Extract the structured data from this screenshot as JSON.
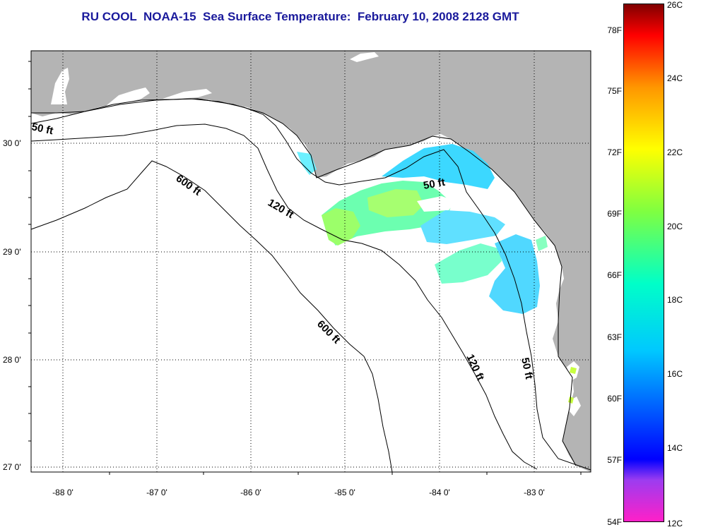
{
  "title": "RU COOL  NOAA-15  Sea Surface Temperature:  February 10, 2008 2128 GMT",
  "map": {
    "latitude_labels": [
      "30 0'",
      "29 0'",
      "28 0'",
      "27 0'"
    ],
    "longitude_labels": [
      "-88 0'",
      "-87 0'",
      "-86 0'",
      "-85 0'",
      "-84 0'",
      "-83 0'"
    ],
    "lon_range": [
      -88.3,
      -82.4
    ],
    "lat_range": [
      26.95,
      30.85
    ],
    "contour_labels": {
      "fifty_west": "50 ft",
      "fifty_east_north": "50 ft",
      "fifty_east_south": "50 ft",
      "onetwenty_north": "120 ft",
      "onetwenty_south": "120 ft",
      "sixhundred_north": "600 ft",
      "sixhundred_south": "600 ft"
    },
    "colors": {
      "land": "#b4b4b4",
      "water_no_data": "#ffffff",
      "grid": "#000000"
    }
  },
  "colorbar": {
    "fahrenheit_labels": [
      "78F",
      "75F",
      "72F",
      "69F",
      "66F",
      "63F",
      "60F",
      "57F",
      "54F"
    ],
    "celsius_labels": [
      "26C",
      "24C",
      "22C",
      "20C",
      "18C",
      "16C",
      "14C",
      "12C"
    ],
    "gradient": [
      "#ff20c8",
      "#9c3cf0",
      "#0000ff",
      "#00c8ff",
      "#00ffc8",
      "#80ff40",
      "#ffff00",
      "#ff9600",
      "#ff0000",
      "#800000"
    ]
  }
}
